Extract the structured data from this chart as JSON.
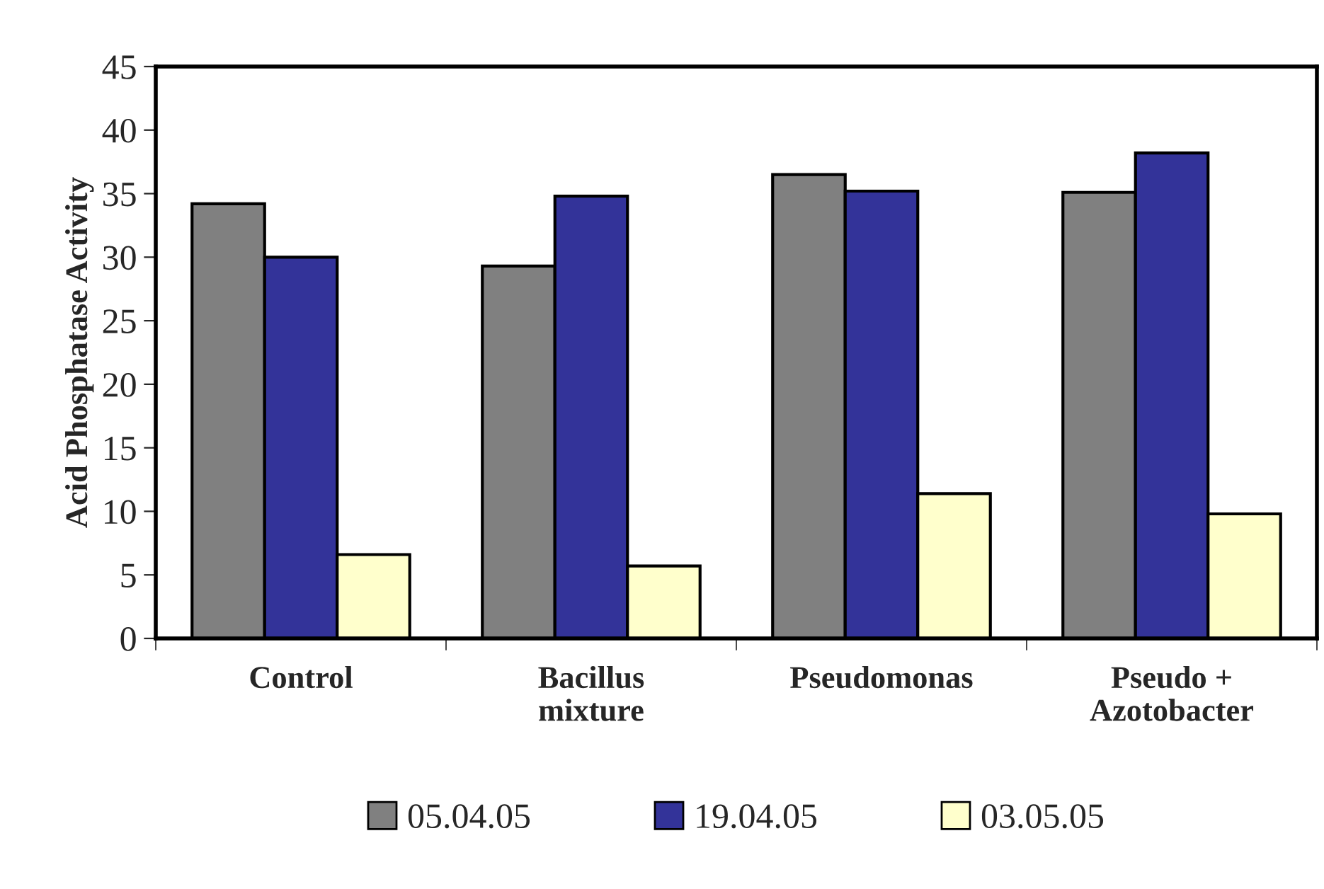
{
  "chart_data": {
    "type": "bar",
    "ylabel": "Acid Phosphatase Activity",
    "categories": [
      "Control",
      "Bacillus\nmixture",
      "Pseudomonas",
      "Pseudo +\nAzotobacter"
    ],
    "series": [
      {
        "name": "05.04.05",
        "color": "#808080",
        "values": [
          34.2,
          29.3,
          36.5,
          35.1
        ]
      },
      {
        "name": "19.04.05",
        "color": "#333399",
        "values": [
          30.0,
          34.8,
          35.2,
          38.2
        ]
      },
      {
        "name": "03.05.05",
        "color": "#ffffcc",
        "values": [
          6.6,
          5.7,
          11.4,
          9.8
        ]
      }
    ],
    "ylim": [
      0,
      45
    ],
    "yticks": [
      0,
      5,
      10,
      15,
      20,
      25,
      30,
      35,
      40,
      45
    ],
    "grid": false,
    "legend": "bottom"
  }
}
